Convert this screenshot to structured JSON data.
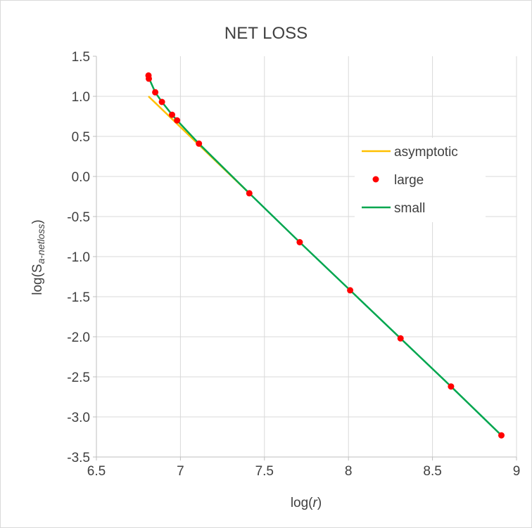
{
  "chart_data": {
    "type": "scatter",
    "title": "NET LOSS",
    "xlabel": {
      "prefix": "log(",
      "var": "r",
      "suffix": ")"
    },
    "ylabel": {
      "prefix": "log(S",
      "sub": "a-netloss",
      "suffix": ")"
    },
    "xlim": [
      6.5,
      9
    ],
    "ylim": [
      -3.5,
      1.5
    ],
    "x_ticks": [
      "6.5",
      "7",
      "7.5",
      "8",
      "8.5",
      "9"
    ],
    "y_ticks": [
      "1.5",
      "1.0",
      "0.5",
      "0.0",
      "-0.5",
      "-1.0",
      "-1.5",
      "-2.0",
      "-2.5",
      "-3.0",
      "-3.5"
    ],
    "grid": true,
    "legend_position": "right",
    "series": [
      {
        "name": "asymptotic",
        "kind": "line",
        "color": "#ffc000",
        "x": [
          6.81,
          7.41
        ],
        "y": [
          1.0,
          -0.21
        ]
      },
      {
        "name": "large",
        "kind": "markers",
        "color": "#ff0000",
        "x": [
          6.81,
          6.812,
          6.85,
          6.89,
          6.95,
          6.98,
          7.11,
          7.41,
          7.71,
          8.01,
          8.31,
          8.61,
          8.91
        ],
        "y": [
          1.26,
          1.22,
          1.05,
          0.93,
          0.77,
          0.7,
          0.41,
          -0.21,
          -0.82,
          -1.42,
          -2.02,
          -2.62,
          -3.23
        ]
      },
      {
        "name": "small",
        "kind": "line",
        "color": "#00a64f",
        "x": [
          6.81,
          6.85,
          6.89,
          6.95,
          6.98,
          7.11,
          7.41,
          7.71,
          8.01,
          8.31,
          8.61,
          8.91
        ],
        "y": [
          1.24,
          1.05,
          0.93,
          0.77,
          0.7,
          0.41,
          -0.21,
          -0.82,
          -1.42,
          -2.02,
          -2.62,
          -3.23
        ]
      }
    ]
  }
}
